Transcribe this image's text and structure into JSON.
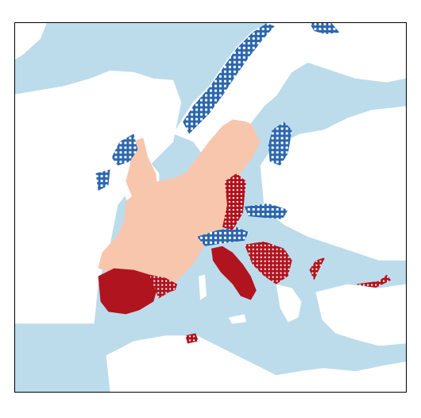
{
  "map": {
    "colors": {
      "water": "#bcdceb",
      "land": "#ffffff",
      "light_category": "#f7c6ad",
      "dark_red_category": "#b0141f",
      "blue_category": "#2b67ad",
      "frame": "#000000"
    },
    "legend": [],
    "title": ""
  }
}
